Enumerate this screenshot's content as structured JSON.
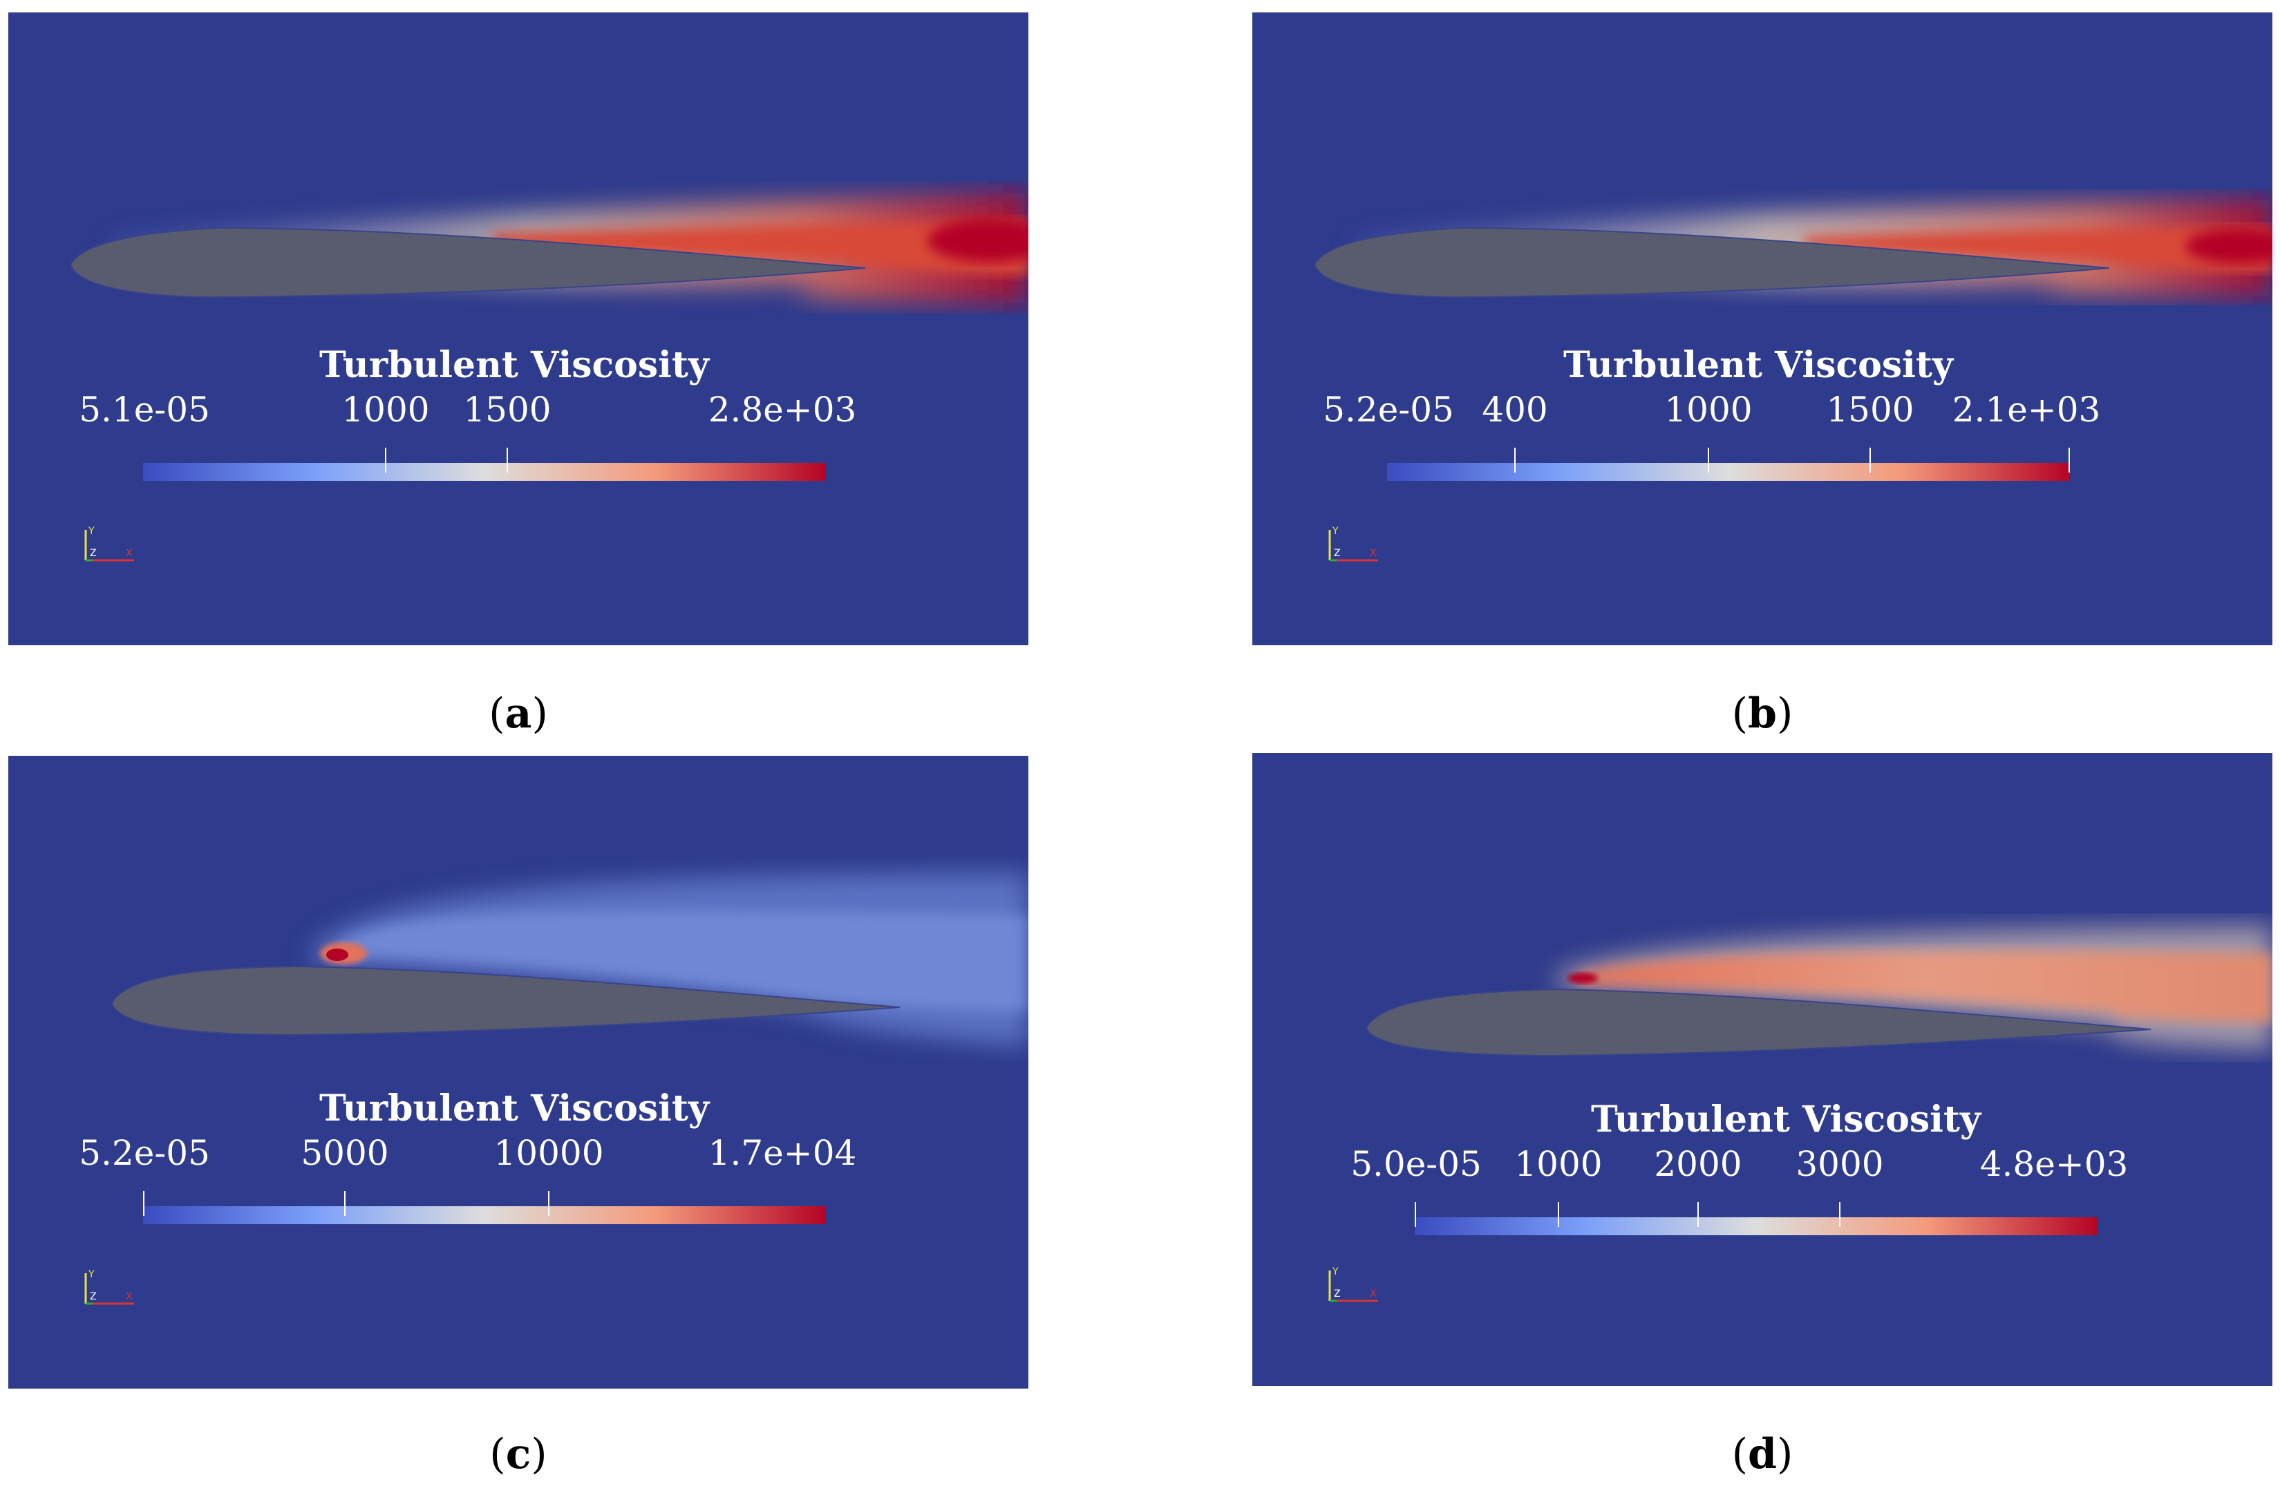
{
  "panels": [
    {
      "id": "a",
      "caption": "a",
      "colorbar": {
        "title": "Turbulent Viscosity",
        "min_label": "5.1e-05",
        "max_label": "2.8e+03",
        "ticks": [
          "1000",
          "1500"
        ]
      },
      "axes": {
        "y": "Y",
        "z": "Z",
        "x": "X"
      }
    },
    {
      "id": "b",
      "caption": "b",
      "colorbar": {
        "title": "Turbulent Viscosity",
        "min_label": "5.2e-05",
        "max_label": "2.1e+03",
        "ticks": [
          "400",
          "1000",
          "1500"
        ]
      },
      "axes": {
        "y": "Y",
        "z": "Z",
        "x": "X"
      }
    },
    {
      "id": "c",
      "caption": "c",
      "colorbar": {
        "title": "Turbulent Viscosity",
        "min_label": "5.2e-05",
        "max_label": "1.7e+04",
        "ticks": [
          "5000",
          "10000"
        ]
      },
      "axes": {
        "y": "Y",
        "z": "Z",
        "x": "X"
      }
    },
    {
      "id": "d",
      "caption": "d",
      "colorbar": {
        "title": "Turbulent Viscosity",
        "min_label": "5.0e-05",
        "max_label": "4.8e+03",
        "ticks": [
          "1000",
          "2000",
          "3000"
        ]
      },
      "axes": {
        "y": "Y",
        "z": "Z",
        "x": "X"
      }
    }
  ],
  "colors": {
    "background": "#2f3b8c",
    "airfoil": "#585c6e",
    "cmap_low": "#3b4cc0",
    "cmap_mid": "#dddddd",
    "cmap_high": "#b40426"
  }
}
